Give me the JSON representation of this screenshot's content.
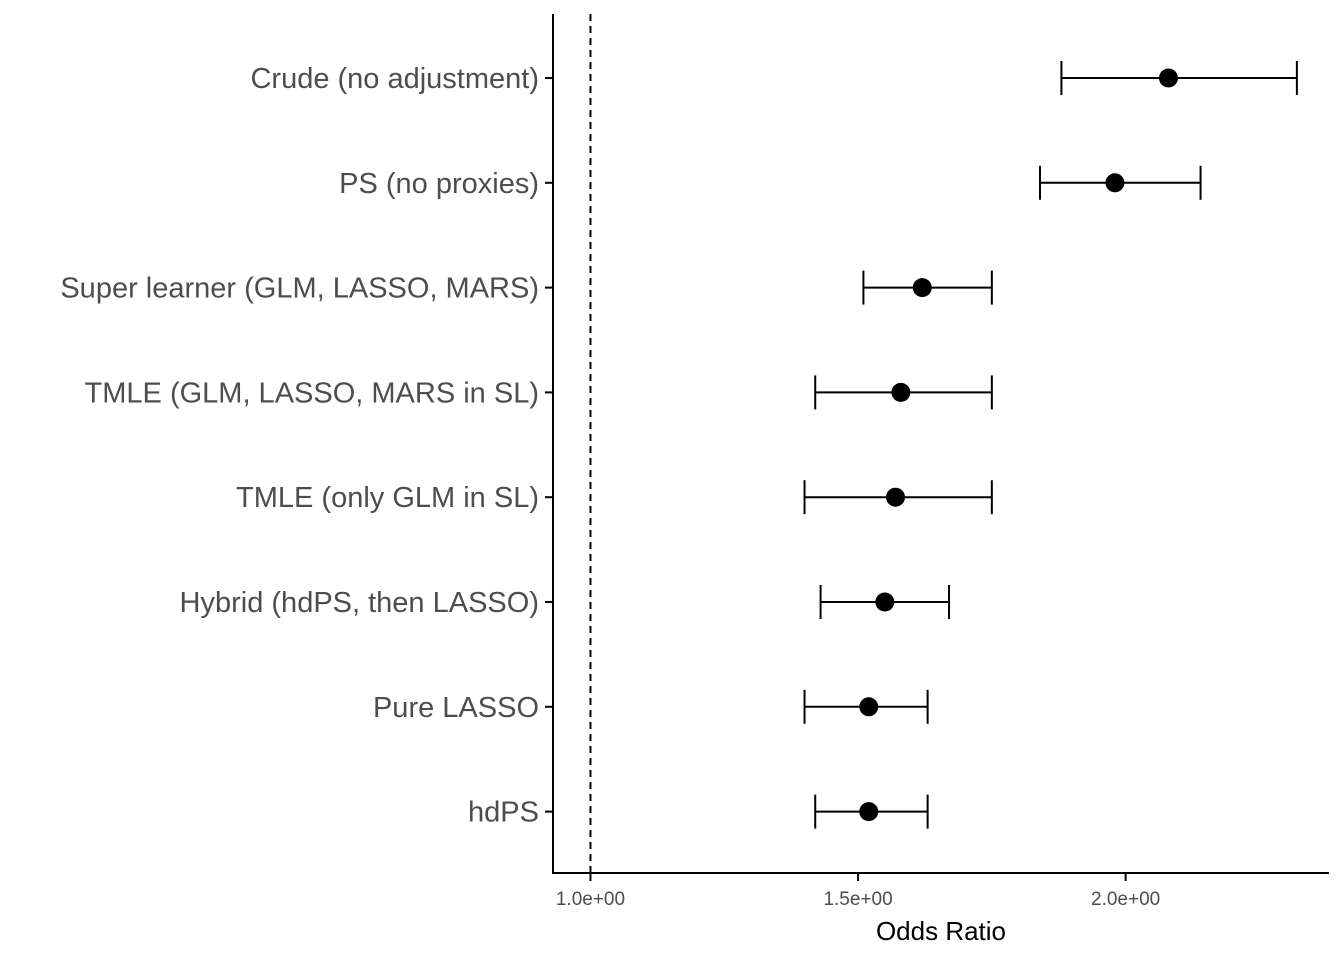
{
  "chart_data": {
    "type": "scatter",
    "subtype": "forest-plot",
    "title": "",
    "xlabel": "Odds Ratio",
    "ylabel": "",
    "xlim": [
      0.93,
      2.38
    ],
    "reference_line": {
      "x": 1.0,
      "style": "dashed"
    },
    "x_ticks": [
      {
        "value": 1.0,
        "label": "1.0e+00"
      },
      {
        "value": 1.5,
        "label": "1.5e+00"
      },
      {
        "value": 2.0,
        "label": "2.0e+00"
      }
    ],
    "grid": false,
    "legend": "none",
    "colors": {
      "marker": "#000000",
      "axis": "#000000",
      "label": "#4d4d4d"
    },
    "points": [
      {
        "label": "Crude (no adjustment)",
        "estimate": 2.08,
        "lower": 1.88,
        "upper": 2.32
      },
      {
        "label": "PS (no proxies)",
        "estimate": 1.98,
        "lower": 1.84,
        "upper": 2.14
      },
      {
        "label": "Super learner (GLM, LASSO, MARS)",
        "estimate": 1.62,
        "lower": 1.51,
        "upper": 1.75
      },
      {
        "label": "TMLE (GLM, LASSO, MARS in SL)",
        "estimate": 1.58,
        "lower": 1.42,
        "upper": 1.75
      },
      {
        "label": "TMLE (only GLM in SL)",
        "estimate": 1.57,
        "lower": 1.4,
        "upper": 1.75
      },
      {
        "label": "Hybrid (hdPS, then LASSO)",
        "estimate": 1.55,
        "lower": 1.43,
        "upper": 1.67
      },
      {
        "label": "Pure LASSO",
        "estimate": 1.52,
        "lower": 1.4,
        "upper": 1.63
      },
      {
        "label": "hdPS",
        "estimate": 1.52,
        "lower": 1.42,
        "upper": 1.63
      }
    ]
  }
}
